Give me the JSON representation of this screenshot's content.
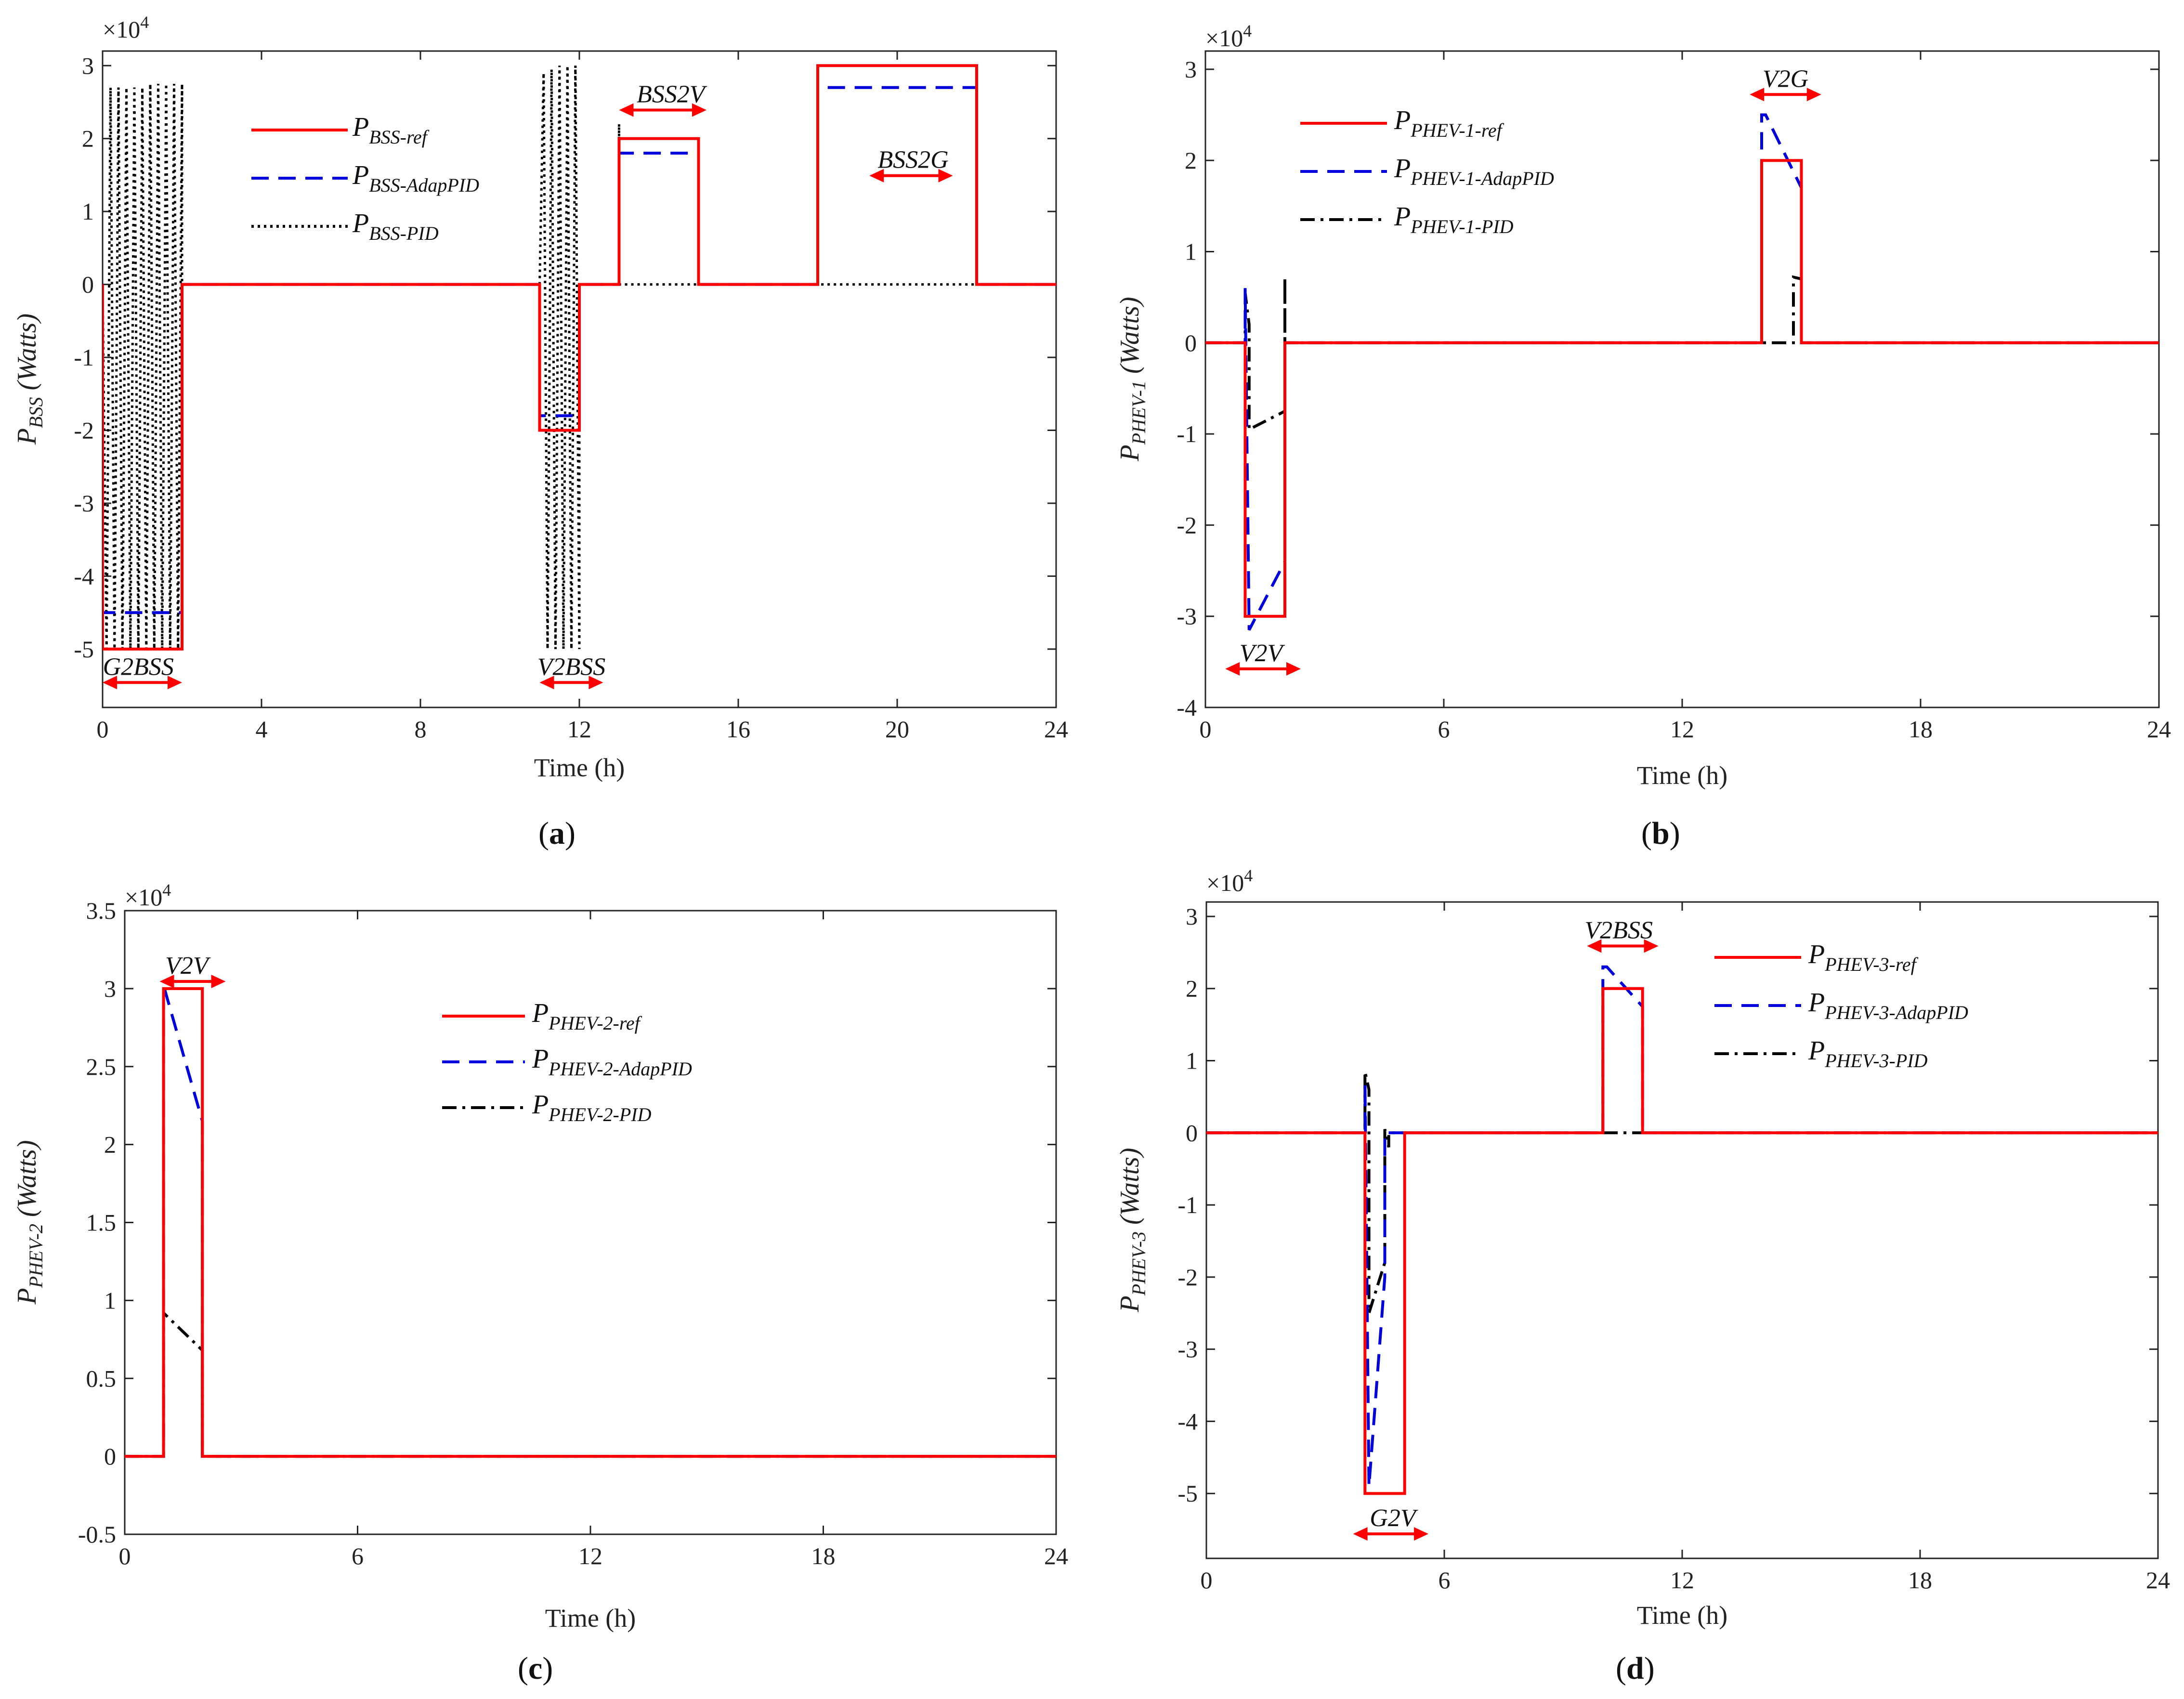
{
  "colors": {
    "ref": "#ff0000",
    "adap": "#0000dd",
    "pid": "#000000",
    "arrow": "#ff0000"
  },
  "chart_data": [
    {
      "type": "line",
      "panel_label": "a",
      "multiplier": {
        "base": "×10",
        "exp": "4"
      },
      "ylabel": {
        "main": "P",
        "sub": "BSS",
        "unit": " (Watts)"
      },
      "xlabel": "Time (h)",
      "xlim": [
        0,
        24
      ],
      "ylim": [
        -5.8,
        3.2
      ],
      "xticks": [
        0,
        4,
        8,
        12,
        16,
        20,
        24
      ],
      "xtick_labels": [
        "0",
        "4",
        "8",
        "12",
        "16",
        "20",
        "24"
      ],
      "yticks": [
        3,
        2,
        1,
        0,
        -1,
        -2,
        -3,
        -4,
        -5
      ],
      "ytick_labels": [
        "3",
        "2",
        "1",
        "0",
        "-1",
        "-2",
        "-3",
        "-4",
        "-5"
      ],
      "legend": {
        "position": "top-left",
        "entries": [
          {
            "main": "P",
            "sub": "BSS-ref",
            "style": "ref"
          },
          {
            "main": "P",
            "sub": "BSS-AdapPID",
            "style": "adap"
          },
          {
            "main": "P",
            "sub": "BSS-PID",
            "style": "pid-dot"
          }
        ]
      },
      "series": [
        {
          "name": "P_BSS-ref",
          "style": "ref",
          "x": [
            0,
            0,
            2,
            2,
            11,
            11,
            12,
            12,
            13,
            13,
            15,
            15,
            18,
            18,
            22,
            22,
            24
          ],
          "y": [
            0,
            -5,
            -5,
            0,
            0,
            -2,
            -2,
            0,
            0,
            2,
            2,
            0,
            0,
            3,
            3,
            0,
            0
          ]
        },
        {
          "name": "P_BSS-AdapPID",
          "style": "adap",
          "x": [
            0,
            0,
            2,
            2,
            11,
            11,
            12,
            12,
            13,
            13,
            15,
            15,
            18,
            18,
            22,
            22,
            24
          ],
          "y": [
            0,
            -4.5,
            -4.5,
            0,
            0,
            -1.8,
            -1.8,
            0,
            0,
            1.8,
            1.8,
            0,
            0,
            2.7,
            2.7,
            0,
            0
          ]
        },
        {
          "name": "P_BSS-PID",
          "style": "pid-dot",
          "x": [
            0,
            0.1,
            0.2,
            0.3,
            0.4,
            0.5,
            0.6,
            0.7,
            0.8,
            0.9,
            1.0,
            1.1,
            1.2,
            1.3,
            1.4,
            1.5,
            1.6,
            1.7,
            1.8,
            1.9,
            2.0,
            2.0,
            11,
            11.1,
            11.2,
            11.3,
            11.4,
            11.5,
            11.6,
            11.7,
            11.8,
            11.9,
            12.0,
            12.0,
            13,
            13,
            13,
            18,
            18,
            18,
            24
          ],
          "y": [
            0,
            -5,
            2.7,
            -5,
            2.7,
            -5,
            2.7,
            -5,
            2.7,
            -5,
            2.7,
            -5,
            2.75,
            -5,
            2.75,
            -5,
            2.75,
            -5,
            2.75,
            -5,
            2.75,
            0,
            0,
            2.9,
            -5,
            2.95,
            -5,
            3,
            -5,
            3,
            -5,
            3,
            -5,
            0,
            0,
            2.2,
            0,
            0,
            0.5,
            0,
            0
          ]
        }
      ],
      "annotations": [
        {
          "text": "G2BSS",
          "x": 0.9,
          "y": -5.3,
          "arrow": [
            0,
            2
          ]
        },
        {
          "text": "V2BSS",
          "x": 11.8,
          "y": -5.3,
          "arrow": [
            11,
            12.6
          ]
        },
        {
          "text": "BSS2V",
          "x": 14.3,
          "y": 2.55,
          "arrow": [
            13,
            15.2
          ]
        },
        {
          "text": "BSS2G",
          "x": 20.4,
          "y": 1.65,
          "arrow": [
            19.3,
            21.4
          ]
        }
      ]
    },
    {
      "type": "line",
      "panel_label": "b",
      "multiplier": {
        "base": "×10",
        "exp": "4"
      },
      "ylabel": {
        "main": "P",
        "sub": "PHEV-1",
        "unit": " (Watts)"
      },
      "xlabel": "Time (h)",
      "xlim": [
        0,
        24
      ],
      "ylim": [
        -4,
        3.2
      ],
      "xticks": [
        0,
        6,
        12,
        18,
        24
      ],
      "xtick_labels": [
        "0",
        "6",
        "12",
        "18",
        "24"
      ],
      "yticks": [
        3,
        2,
        1,
        0,
        -1,
        -2,
        -3,
        -4
      ],
      "ytick_labels": [
        "3",
        "2",
        "1",
        "0",
        "-1",
        "-2",
        "-3",
        "-4"
      ],
      "legend": {
        "position": "top-left",
        "entries": [
          {
            "main": "P",
            "sub": "PHEV-1-ref",
            "style": "ref"
          },
          {
            "main": "P",
            "sub": "PHEV-1-AdapPID",
            "style": "adap"
          },
          {
            "main": "P",
            "sub": "PHEV-1-PID",
            "style": "pid-dashdot"
          }
        ]
      },
      "series": [
        {
          "name": "P_PHEV-1-ref",
          "style": "ref",
          "x": [
            0,
            1,
            1,
            2,
            2,
            14,
            14,
            15,
            15,
            24
          ],
          "y": [
            0,
            0,
            -3,
            -3,
            0,
            0,
            2,
            2,
            0,
            0
          ]
        },
        {
          "name": "P_PHEV-1-AdapPID",
          "style": "adap",
          "x": [
            0,
            1,
            1,
            1.1,
            2,
            2,
            14,
            14,
            14.1,
            15,
            15,
            24
          ],
          "y": [
            0,
            0,
            0.6,
            -3.15,
            -2.4,
            0,
            0,
            2.5,
            2.5,
            1.7,
            0,
            0
          ]
        },
        {
          "name": "P_PHEV-1-PID",
          "style": "pid-dashdot",
          "x": [
            0,
            1,
            1,
            1.1,
            1.1,
            2,
            2,
            2,
            14,
            14,
            14.2,
            14.8,
            14.8,
            15,
            15,
            24
          ],
          "y": [
            0,
            0,
            0.55,
            0.2,
            -0.95,
            -0.75,
            0.72,
            0,
            0,
            0,
            0,
            0,
            0.72,
            0.7,
            0,
            0
          ]
        }
      ],
      "annotations": [
        {
          "text": "V2V",
          "x": 1.4,
          "y": -3.45,
          "arrow": [
            0.5,
            2.4
          ]
        },
        {
          "text": "V2G",
          "x": 14.6,
          "y": 2.85,
          "arrow": [
            13.7,
            15.5
          ]
        }
      ]
    },
    {
      "type": "line",
      "panel_label": "c",
      "multiplier": {
        "base": "×10",
        "exp": "4"
      },
      "ylabel": {
        "main": "P",
        "sub": "PHEV-2",
        "unit": " (Watts)"
      },
      "xlabel": "Time (h)",
      "xlim": [
        0,
        24
      ],
      "ylim": [
        -0.5,
        3.5
      ],
      "xticks": [
        0,
        6,
        12,
        18,
        24
      ],
      "xtick_labels": [
        "0",
        "6",
        "12",
        "18",
        "24"
      ],
      "yticks": [
        3.5,
        3,
        2.5,
        2,
        1.5,
        1,
        0.5,
        0,
        -0.5
      ],
      "ytick_labels": [
        "3.5",
        "3",
        "2.5",
        "2",
        "1.5",
        "1",
        "0.5",
        "0",
        "-0.5"
      ],
      "legend": {
        "position": "top-center",
        "entries": [
          {
            "main": "P",
            "sub": "PHEV-2-ref",
            "style": "ref"
          },
          {
            "main": "P",
            "sub": "PHEV-2-AdapPID",
            "style": "adap"
          },
          {
            "main": "P",
            "sub": "PHEV-2-PID",
            "style": "pid-dashdot"
          }
        ]
      },
      "series": [
        {
          "name": "P_PHEV-2-ref",
          "style": "ref",
          "x": [
            0,
            1,
            1,
            2,
            2,
            24
          ],
          "y": [
            0,
            0,
            3,
            3,
            0,
            0
          ]
        },
        {
          "name": "P_PHEV-2-AdapPID",
          "style": "adap",
          "x": [
            0,
            1,
            1,
            2,
            2,
            24
          ],
          "y": [
            0,
            0,
            3.02,
            2.15,
            0,
            0
          ]
        },
        {
          "name": "P_PHEV-2-PID",
          "style": "pid-dashdot",
          "x": [
            0,
            1,
            1,
            2,
            2,
            24
          ],
          "y": [
            0,
            0,
            0.92,
            0.68,
            0,
            0
          ]
        }
      ],
      "annotations": [
        {
          "text": "V2V",
          "x": 1.6,
          "y": 3.12,
          "arrow": [
            0.9,
            2.6
          ]
        }
      ]
    },
    {
      "type": "line",
      "panel_label": "d",
      "multiplier": {
        "base": "×10",
        "exp": "4"
      },
      "ylabel": {
        "main": "P",
        "sub": "PHEV-3",
        "unit": " (Watts)"
      },
      "xlabel": "Time (h)",
      "xlim": [
        0,
        24
      ],
      "ylim": [
        -5.9,
        3.2
      ],
      "xticks": [
        0,
        6,
        12,
        18,
        24
      ],
      "xtick_labels": [
        "0",
        "6",
        "12",
        "18",
        "24"
      ],
      "yticks": [
        3,
        2,
        1,
        0,
        -1,
        -2,
        -3,
        -4,
        -5
      ],
      "ytick_labels": [
        "3",
        "2",
        "1",
        "0",
        "-1",
        "-2",
        "-3",
        "-4",
        "-5"
      ],
      "legend": {
        "position": "top-right",
        "entries": [
          {
            "main": "P",
            "sub": "PHEV-3-ref",
            "style": "ref"
          },
          {
            "main": "P",
            "sub": "PHEV-3-AdapPID",
            "style": "adap"
          },
          {
            "main": "P",
            "sub": "PHEV-3-PID",
            "style": "pid-dashdot"
          }
        ]
      },
      "series": [
        {
          "name": "P_PHEV-3-ref",
          "style": "ref",
          "x": [
            0,
            4,
            4,
            5,
            5,
            10,
            10,
            11,
            11,
            24
          ],
          "y": [
            0,
            0,
            -5,
            -5,
            0,
            0,
            2,
            2,
            0,
            0
          ]
        },
        {
          "name": "P_PHEV-3-AdapPID",
          "style": "adap",
          "x": [
            0,
            4,
            4,
            4.1,
            4.5,
            4.5,
            10,
            10,
            10.1,
            11,
            11,
            24
          ],
          "y": [
            0,
            0,
            0.7,
            -4.9,
            -2.0,
            0,
            0,
            2.3,
            2.3,
            1.75,
            0,
            0
          ]
        },
        {
          "name": "P_PHEV-3-PID",
          "style": "pid-dashdot",
          "x": [
            0,
            4,
            4,
            4.1,
            4.1,
            4.5,
            4.5,
            4.6,
            4.6,
            24
          ],
          "y": [
            0,
            0,
            0.85,
            0.6,
            -2.5,
            -1.8,
            0.05,
            -0.2,
            0,
            0
          ]
        }
      ],
      "annotations": [
        {
          "text": "G2V",
          "x": 4.7,
          "y": -5.4,
          "arrow": [
            3.7,
            5.6
          ]
        },
        {
          "text": "V2BSS",
          "x": 10.4,
          "y": 2.75,
          "arrow": [
            9.6,
            11.4
          ]
        }
      ]
    }
  ]
}
